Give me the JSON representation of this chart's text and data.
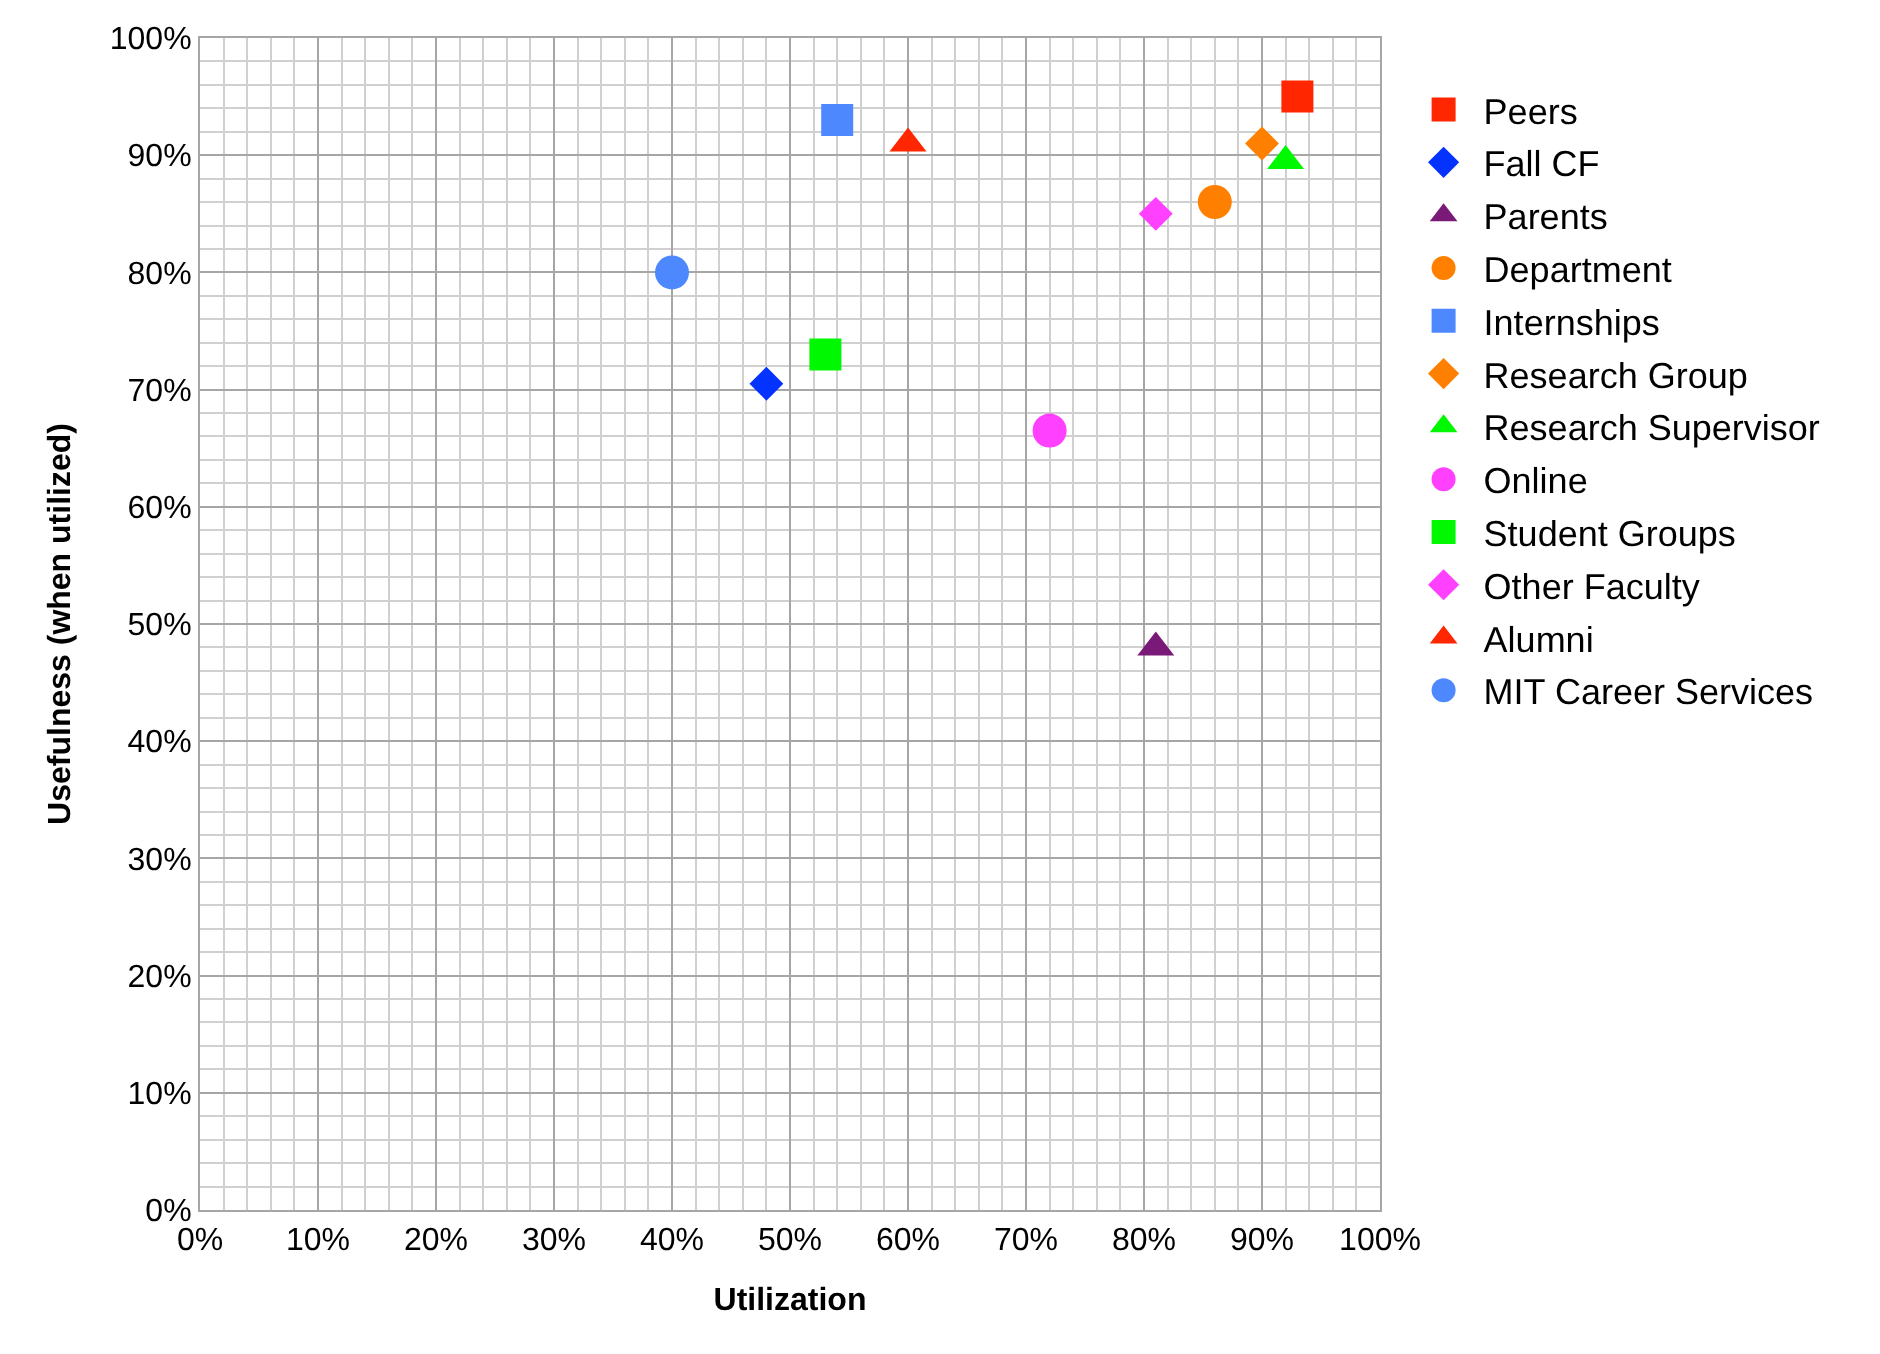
{
  "chart_data": {
    "type": "scatter",
    "xlabel": "Utilization",
    "ylabel": "Usefulness (when utilized)",
    "xlim": [
      0,
      100
    ],
    "ylim": [
      0,
      100
    ],
    "xticks": [
      {
        "value": 0,
        "label": "0%"
      },
      {
        "value": 10,
        "label": "10%"
      },
      {
        "value": 20,
        "label": "20%"
      },
      {
        "value": 30,
        "label": "30%"
      },
      {
        "value": 40,
        "label": "40%"
      },
      {
        "value": 50,
        "label": "50%"
      },
      {
        "value": 60,
        "label": "60%"
      },
      {
        "value": 70,
        "label": "70%"
      },
      {
        "value": 80,
        "label": "80%"
      },
      {
        "value": 90,
        "label": "90%"
      },
      {
        "value": 100,
        "label": "100%"
      }
    ],
    "yticks": [
      {
        "value": 0,
        "label": "0%"
      },
      {
        "value": 10,
        "label": "10%"
      },
      {
        "value": 20,
        "label": "20%"
      },
      {
        "value": 30,
        "label": "30%"
      },
      {
        "value": 40,
        "label": "40%"
      },
      {
        "value": 50,
        "label": "50%"
      },
      {
        "value": 60,
        "label": "60%"
      },
      {
        "value": 70,
        "label": "70%"
      },
      {
        "value": 80,
        "label": "80%"
      },
      {
        "value": 90,
        "label": "90%"
      },
      {
        "value": 100,
        "label": "100%"
      }
    ],
    "grid": true,
    "legend": "right",
    "series": [
      {
        "name": "Peers",
        "color": "#ff2600",
        "marker": "square",
        "x": [
          93
        ],
        "values": [
          95
        ]
      },
      {
        "name": "Fall CF",
        "color": "#0433ff",
        "marker": "diamond",
        "x": [
          48
        ],
        "values": [
          70.5
        ]
      },
      {
        "name": "Parents",
        "color": "#7a1a78",
        "marker": "triangle",
        "x": [
          81
        ],
        "values": [
          48
        ]
      },
      {
        "name": "Department",
        "color": "#ff8000",
        "marker": "circle",
        "x": [
          86
        ],
        "values": [
          86
        ]
      },
      {
        "name": "Internships",
        "color": "#4d88ff",
        "marker": "square",
        "x": [
          54
        ],
        "values": [
          93
        ]
      },
      {
        "name": "Research Group",
        "color": "#ff8000",
        "marker": "diamond",
        "x": [
          90
        ],
        "values": [
          91
        ]
      },
      {
        "name": "Research Supervisor",
        "color": "#00f900",
        "marker": "triangle",
        "x": [
          92
        ],
        "values": [
          89.5
        ]
      },
      {
        "name": "Online",
        "color": "#ff40ff",
        "marker": "circle",
        "x": [
          72
        ],
        "values": [
          66.5
        ]
      },
      {
        "name": "Student Groups",
        "color": "#00f900",
        "marker": "square",
        "x": [
          53
        ],
        "values": [
          73
        ]
      },
      {
        "name": "Other Faculty",
        "color": "#ff40ff",
        "marker": "diamond",
        "x": [
          81
        ],
        "values": [
          85
        ]
      },
      {
        "name": "Alumni",
        "color": "#ff2600",
        "marker": "triangle",
        "x": [
          60
        ],
        "values": [
          91
        ]
      },
      {
        "name": "MIT Career Services",
        "color": "#4d88ff",
        "marker": "circle",
        "x": [
          40
        ],
        "values": [
          80
        ]
      }
    ]
  }
}
